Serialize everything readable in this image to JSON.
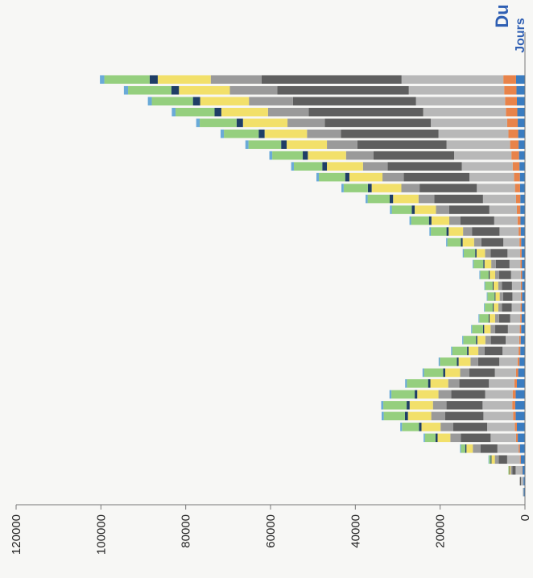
{
  "title_fragment": "Du",
  "chart_data": {
    "type": "bar",
    "stacked": true,
    "orientation": "vertical (page rotated 90° clockwise)",
    "xlabel": "Jours",
    "ylabel": "",
    "ylim": [
      0,
      120000
    ],
    "y_ticks": [
      "0",
      "20000",
      "40000",
      "60000",
      "80000",
      "100000",
      "120000"
    ],
    "grid": false,
    "legend": "none visible",
    "colors": {
      "series_1": "#3a7cc0",
      "series_2": "#e8834a",
      "series_3": "#b8b8b8",
      "series_4": "#5f5f5f",
      "series_5": "#9a9a9a",
      "series_6": "#f2e06a",
      "series_7": "#1f3e66",
      "series_8": "#95cf7e",
      "series_9": "#6aaad8"
    },
    "series": [
      {
        "values": [
          300,
          350,
          600,
          1000,
          1200,
          1700,
          1900,
          2200,
          2300,
          2200,
          1900,
          1600,
          1300,
          1100,
          1000,
          900,
          800,
          750,
          700,
          700,
          700,
          750,
          800,
          900,
          1000,
          1050,
          1100,
          1100,
          1150,
          1200,
          1300,
          1400,
          1500,
          1600,
          1700,
          1800,
          1900,
          2000,
          2100
        ]
      },
      {
        "values": [
          0,
          0,
          100,
          200,
          300,
          400,
          500,
          600,
          700,
          700,
          600,
          500,
          450,
          400,
          350,
          320,
          300,
          280,
          260,
          260,
          280,
          300,
          320,
          400,
          500,
          700,
          800,
          1000,
          1200,
          1400,
          1600,
          1800,
          2000,
          2300,
          2500,
          2700,
          2800,
          2900,
          3000
        ]
      },
      {
        "values": [
          200,
          600,
          1500,
          3000,
          5000,
          6000,
          6500,
          7000,
          7000,
          6500,
          6000,
          5000,
          4300,
          3800,
          3200,
          2800,
          2400,
          2100,
          2000,
          2100,
          2300,
          2600,
          3000,
          3800,
          4500,
          5500,
          6500,
          7800,
          9000,
          10500,
          12000,
          13500,
          15000,
          16500,
          18000,
          19500,
          21000,
          22500,
          24000
        ]
      },
      {
        "values": [
          0,
          200,
          800,
          2000,
          4000,
          7000,
          8000,
          9000,
          8500,
          8000,
          7000,
          6000,
          5000,
          4200,
          3500,
          3000,
          2600,
          2300,
          2200,
          2400,
          2800,
          3200,
          4000,
          5200,
          6500,
          8000,
          9500,
          11500,
          13500,
          15500,
          17500,
          19000,
          21000,
          23000,
          25000,
          27000,
          29000,
          31000,
          33000
        ]
      },
      {
        "values": [
          0,
          100,
          400,
          900,
          1800,
          2500,
          3000,
          3300,
          3200,
          3000,
          2600,
          2200,
          1800,
          1500,
          1300,
          1100,
          950,
          850,
          800,
          850,
          950,
          1100,
          1300,
          1700,
          2100,
          2600,
          3100,
          3700,
          4300,
          5000,
          5800,
          6500,
          7200,
          8000,
          8800,
          9600,
          10400,
          11200,
          12000
        ]
      },
      {
        "values": [
          0,
          0,
          300,
          800,
          1500,
          3000,
          4500,
          5500,
          5500,
          5000,
          4200,
          3500,
          2800,
          2300,
          1900,
          1500,
          1300,
          1100,
          1000,
          1100,
          1300,
          1600,
          2000,
          2700,
          3400,
          4200,
          5000,
          6000,
          7000,
          7800,
          8500,
          9000,
          9500,
          10000,
          10500,
          11000,
          11500,
          12000,
          12500
        ]
      },
      {
        "values": [
          0,
          0,
          100,
          200,
          300,
          500,
          600,
          700,
          700,
          600,
          550,
          500,
          400,
          350,
          300,
          250,
          220,
          200,
          190,
          200,
          230,
          270,
          320,
          400,
          500,
          600,
          700,
          800,
          900,
          1000,
          1100,
          1200,
          1300,
          1400,
          1500,
          1600,
          1700,
          1800,
          1900
        ]
      },
      {
        "values": [
          0,
          0,
          100,
          400,
          1000,
          2500,
          4000,
          5000,
          5500,
          5500,
          5000,
          4500,
          4000,
          3500,
          3000,
          2600,
          2200,
          1900,
          1700,
          1800,
          2000,
          2300,
          2700,
          3200,
          3700,
          4200,
          4700,
          5200,
          5700,
          6200,
          6700,
          7200,
          7700,
          8200,
          8700,
          9200,
          9700,
          10200,
          10700
        ]
      },
      {
        "values": [
          0,
          0,
          0,
          100,
          200,
          300,
          400,
          500,
          500,
          450,
          400,
          350,
          300,
          260,
          230,
          200,
          180,
          160,
          150,
          160,
          180,
          200,
          230,
          280,
          330,
          380,
          430,
          480,
          530,
          580,
          630,
          680,
          730,
          780,
          830,
          880,
          930,
          980,
          1030
        ]
      }
    ]
  }
}
